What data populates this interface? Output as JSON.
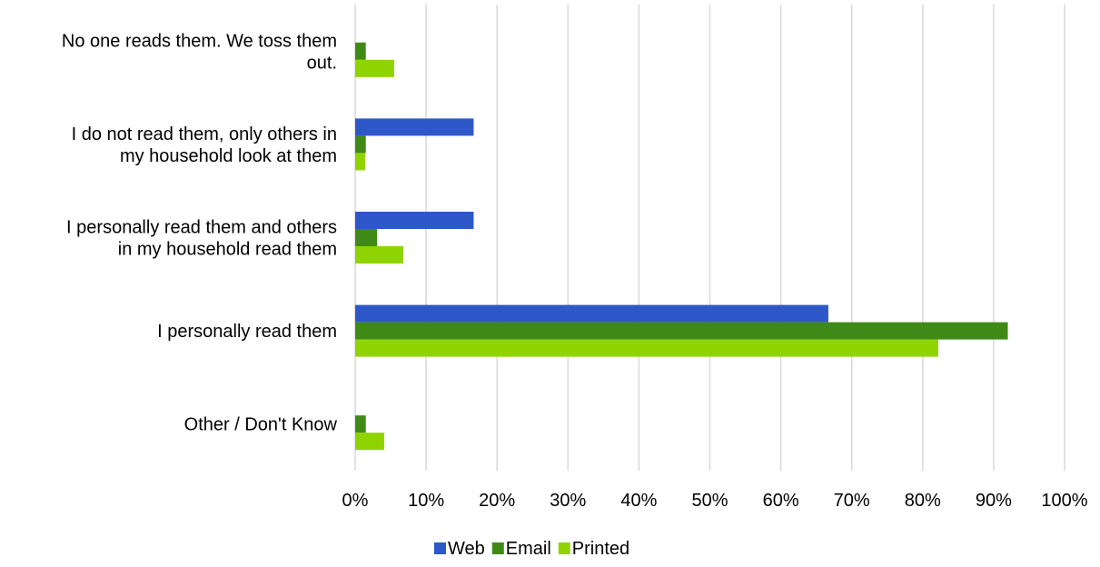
{
  "chart_data": {
    "type": "bar",
    "orientation": "horizontal",
    "categories": [
      [
        "No one reads them. We toss them",
        "out."
      ],
      [
        "I do not read them, only others in",
        "my household look at them"
      ],
      [
        "I personally read them and others",
        "in my household read them"
      ],
      [
        "I personally read them"
      ],
      [
        "Other / Don't Know"
      ]
    ],
    "series": [
      {
        "name": "Web",
        "color": "#2e58c9",
        "values": [
          0,
          16.7,
          16.7,
          66.7,
          0
        ]
      },
      {
        "name": "Email",
        "color": "#3f8a17",
        "values": [
          1.5,
          1.5,
          3.1,
          92.0,
          1.5
        ]
      },
      {
        "name": "Printed",
        "color": "#8fd400",
        "values": [
          5.5,
          1.4,
          6.8,
          82.2,
          4.1
        ]
      }
    ],
    "xlim": [
      0,
      100
    ],
    "x_ticks": [
      "0%",
      "10%",
      "20%",
      "30%",
      "40%",
      "50%",
      "60%",
      "70%",
      "80%",
      "90%",
      "100%"
    ],
    "grid": "vertical",
    "legend_position": "bottom"
  }
}
